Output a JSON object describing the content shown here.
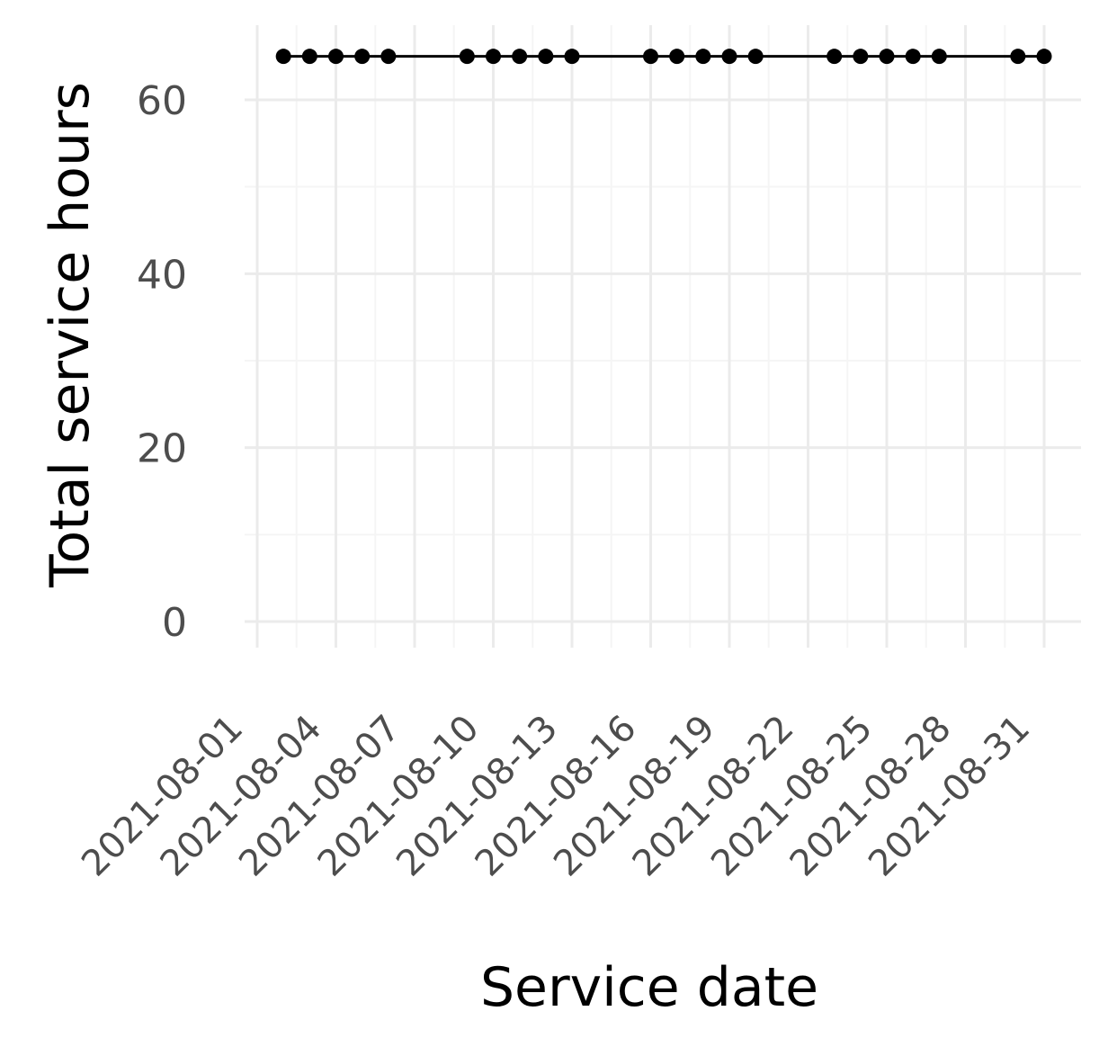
{
  "chart_data": {
    "type": "line",
    "xlabel": "Service date",
    "ylabel": "Total service hours",
    "x_axis_kind": "date",
    "xlim": [
      "2021-08-01",
      "2021-08-31"
    ],
    "ylim": [
      0,
      68
    ],
    "y_ticks": [
      0,
      20,
      40,
      60
    ],
    "y_tick_labels": [
      "0",
      "20",
      "40",
      "60"
    ],
    "x_ticks": [
      "2021-08-01",
      "2021-08-04",
      "2021-08-07",
      "2021-08-10",
      "2021-08-13",
      "2021-08-16",
      "2021-08-19",
      "2021-08-22",
      "2021-08-25",
      "2021-08-28",
      "2021-08-31"
    ],
    "x_tick_labels": [
      "2021-08-01",
      "2021-08-04",
      "2021-08-07",
      "2021-08-10",
      "2021-08-13",
      "2021-08-16",
      "2021-08-19",
      "2021-08-22",
      "2021-08-25",
      "2021-08-28",
      "2021-08-31"
    ],
    "grid": true,
    "legend": "none",
    "colors": {
      "line": "#000000",
      "point": "#000000",
      "grid_major": "#ebebeb",
      "grid_minor": "#f5f5f5",
      "tick_label": "#4d4d4d"
    },
    "series": [
      {
        "x": [
          "2021-08-02",
          "2021-08-03",
          "2021-08-04",
          "2021-08-05",
          "2021-08-06",
          "2021-08-09",
          "2021-08-10",
          "2021-08-11",
          "2021-08-12",
          "2021-08-13",
          "2021-08-16",
          "2021-08-17",
          "2021-08-18",
          "2021-08-19",
          "2021-08-20",
          "2021-08-23",
          "2021-08-24",
          "2021-08-25",
          "2021-08-26",
          "2021-08-27",
          "2021-08-30",
          "2021-08-31"
        ],
        "values": [
          65,
          65,
          65,
          65,
          65,
          65,
          65,
          65,
          65,
          65,
          65,
          65,
          65,
          65,
          65,
          65,
          65,
          65,
          65,
          65,
          65,
          65
        ]
      }
    ]
  }
}
